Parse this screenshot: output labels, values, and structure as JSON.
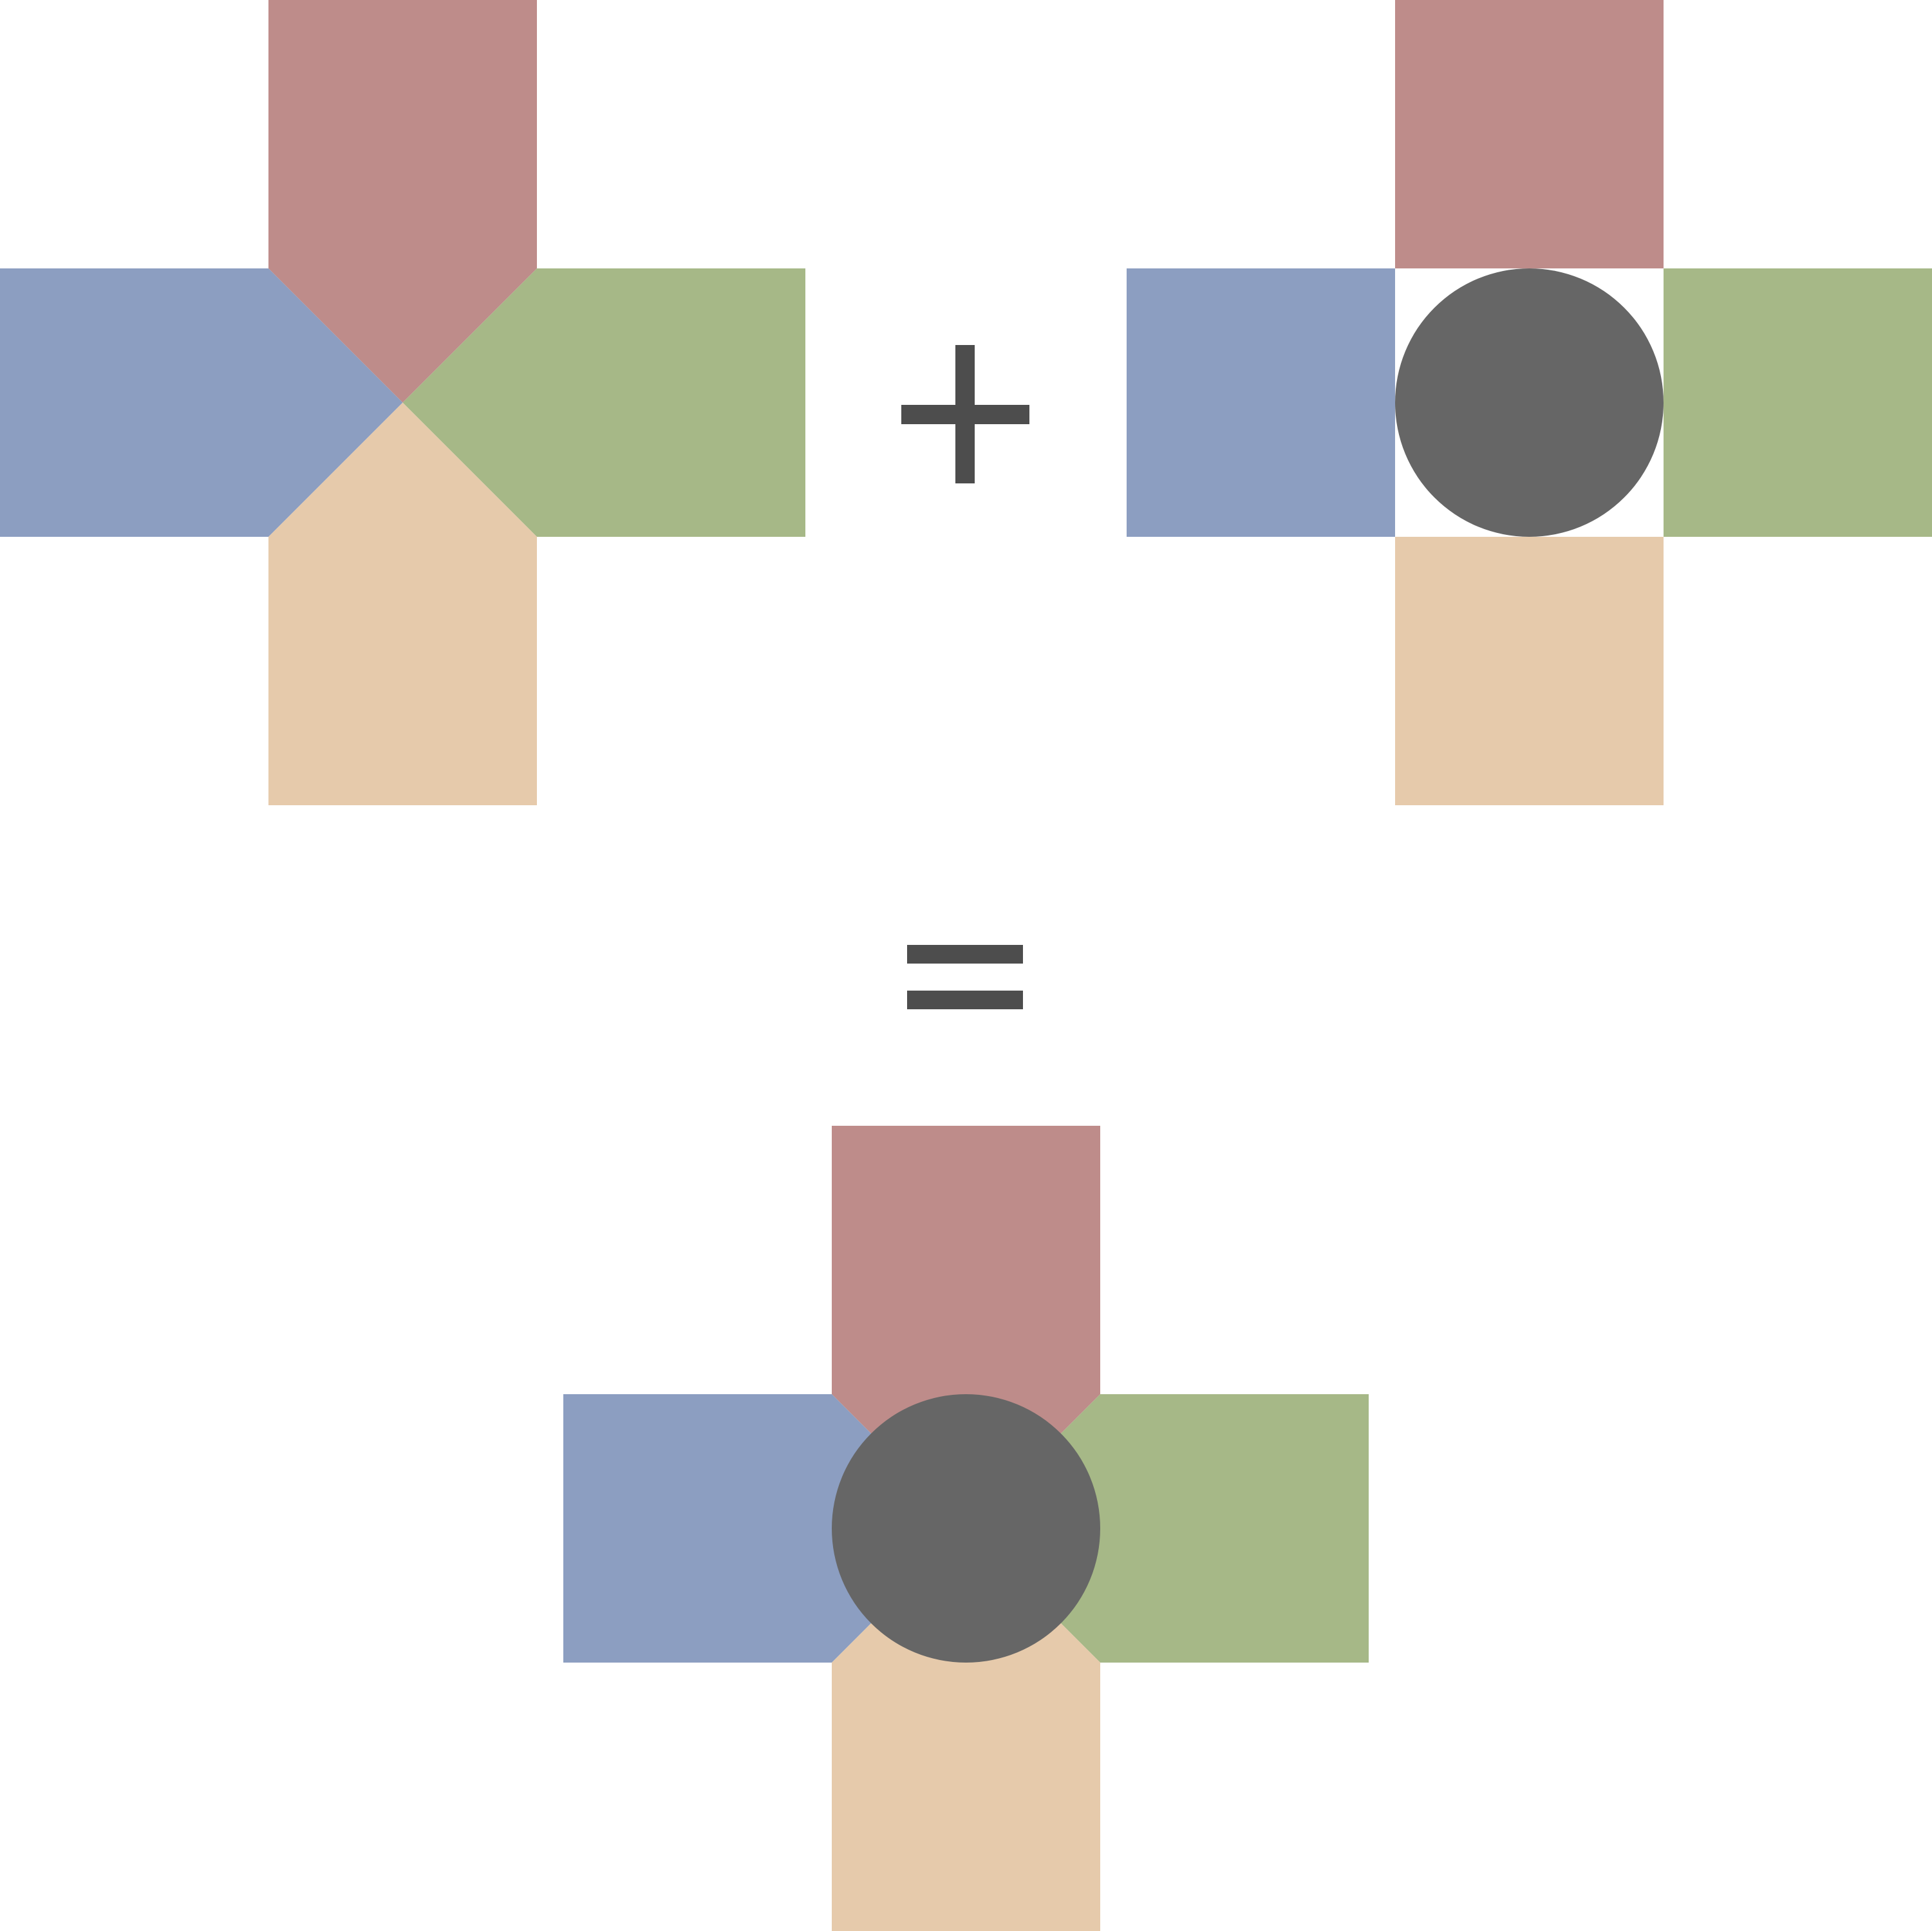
{
  "colors": {
    "background": "#ffffff",
    "top": "#be8c8a",
    "left": "#8c9ec1",
    "right": "#a6b887",
    "bottom": "#e6caab",
    "center_circle": "#666666",
    "operator": "#4d4d4d"
  },
  "diagram": {
    "operand_a": {
      "name": "cross-with-mitered-center",
      "arms": [
        "top",
        "left",
        "right",
        "bottom"
      ],
      "center_style": "diagonal-split"
    },
    "operator_plus": {
      "symbol": "plus"
    },
    "operand_b": {
      "name": "cross-with-circle-center",
      "arms": [
        "top",
        "left",
        "right",
        "bottom"
      ],
      "center_style": "circle"
    },
    "operator_equals": {
      "symbol": "equals"
    },
    "result": {
      "name": "combined-cross",
      "arms": [
        "top",
        "left",
        "right",
        "bottom"
      ],
      "center_style": "diagonal-split-with-circle"
    }
  }
}
